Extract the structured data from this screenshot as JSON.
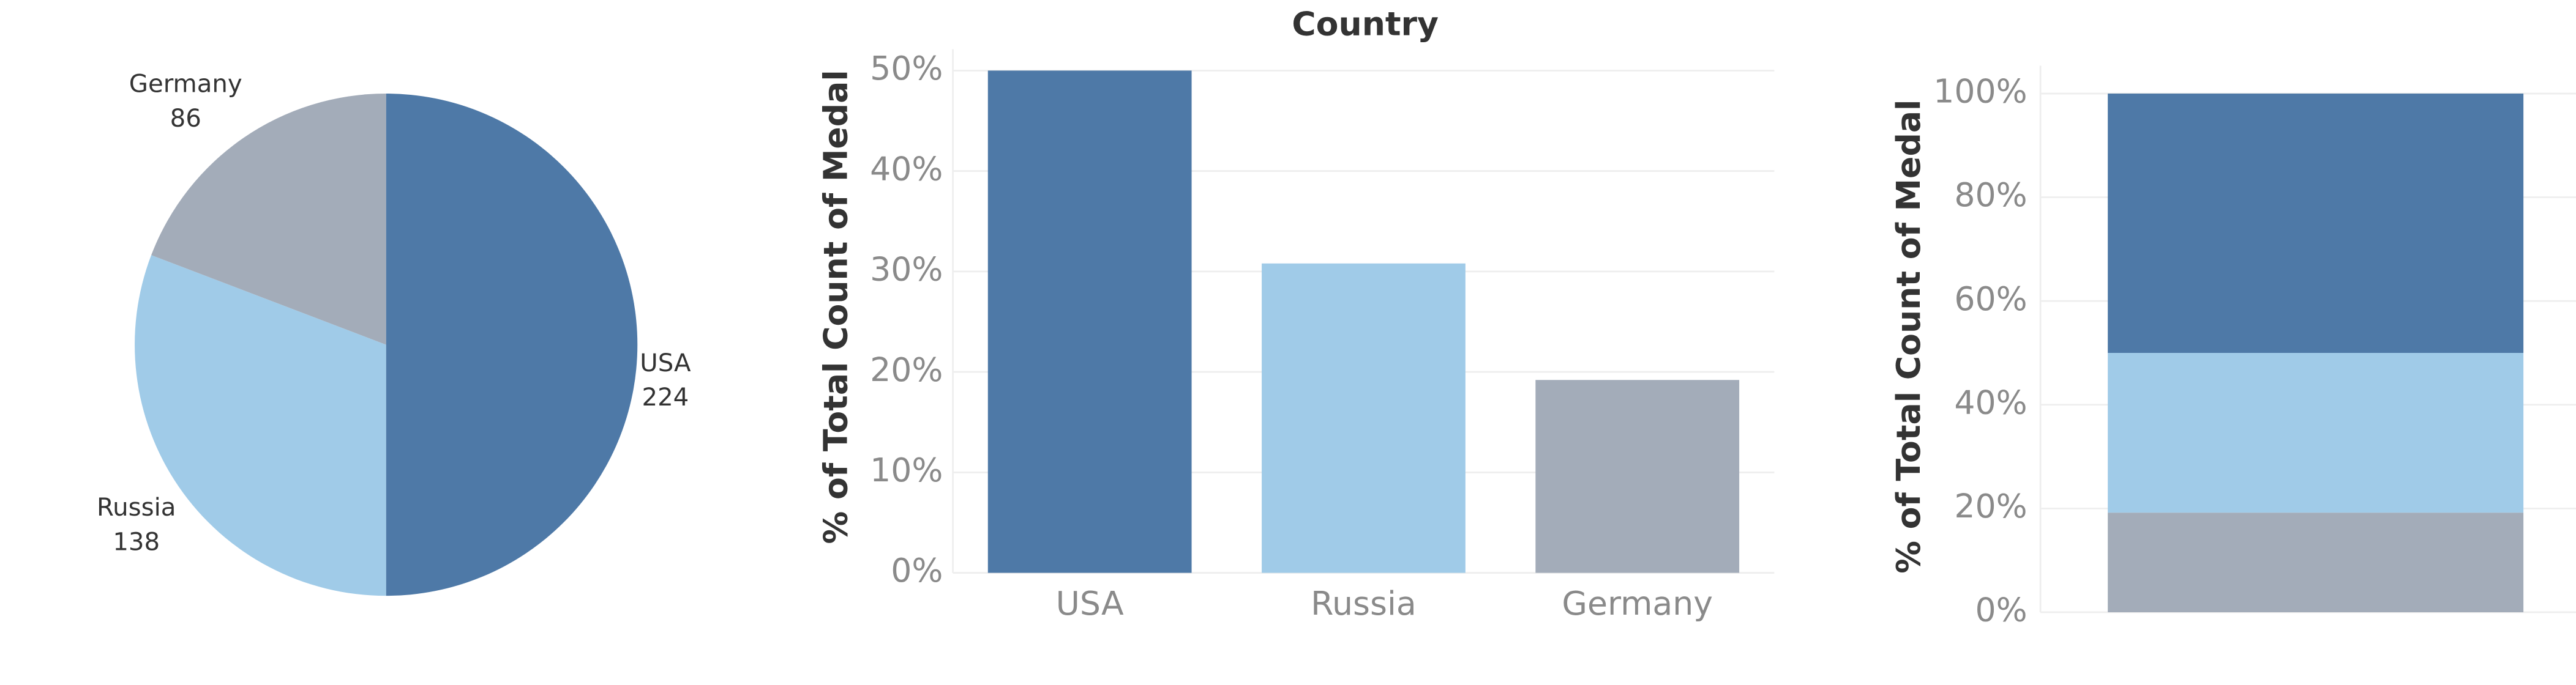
{
  "chart_data": [
    {
      "type": "pie",
      "categories": [
        "USA",
        "Russia",
        "Germany"
      ],
      "values": [
        224,
        138,
        86
      ],
      "colors": [
        "#4e79a7",
        "#a0cbe8",
        "#a3acb9"
      ]
    },
    {
      "type": "bar",
      "title": "Country",
      "y_label": "% of Total Count of Medal",
      "categories": [
        "USA",
        "Russia",
        "Germany"
      ],
      "values": [
        50,
        30.8,
        19.2
      ],
      "colors": [
        "#4e79a7",
        "#a0cbe8",
        "#a3acb9"
      ],
      "ylim": [
        0,
        50
      ],
      "yticks": [
        {
          "value": 0,
          "label": "0%"
        },
        {
          "value": 10,
          "label": "10%"
        },
        {
          "value": 20,
          "label": "20%"
        },
        {
          "value": 30,
          "label": "30%"
        },
        {
          "value": 40,
          "label": "40%"
        },
        {
          "value": 50,
          "label": "50%"
        }
      ],
      "grid": true
    },
    {
      "type": "stacked_bar",
      "y_label": "% of Total Count of Medal",
      "series": [
        {
          "color": "#4e79a7",
          "values": [
            50
          ]
        },
        {
          "color": "#a0cbe8",
          "values": [
            30.8
          ]
        },
        {
          "color": "#a3acb9",
          "values": [
            19.2
          ]
        }
      ],
      "ylim": [
        0,
        100
      ],
      "yticks": [
        {
          "value": 0,
          "label": "0%"
        },
        {
          "value": 20,
          "label": "20%"
        },
        {
          "value": 40,
          "label": "40%"
        },
        {
          "value": 60,
          "label": "60%"
        },
        {
          "value": 80,
          "label": "80%"
        },
        {
          "value": 100,
          "label": "100%"
        }
      ],
      "grid": true
    }
  ]
}
